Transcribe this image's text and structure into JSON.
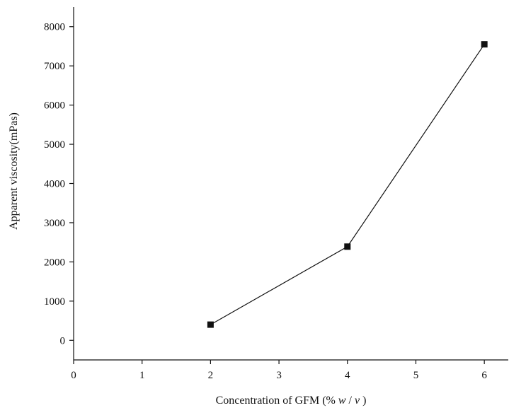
{
  "chart_data": {
    "type": "line",
    "x": [
      2,
      4,
      6
    ],
    "series": [
      {
        "values": [
          400,
          2390,
          7550
        ],
        "color": "#111111",
        "marker": "square"
      }
    ],
    "xlabel": "Concentration of GFM (%",
    "xlabel_italic_1": "w",
    "xlabel_slash": "/",
    "xlabel_italic_2": "v",
    "xlabel_close": ")",
    "ylabel": "Apparent viscosity(mPas)",
    "xlim": [
      0,
      6.35
    ],
    "ylim": [
      -500,
      8500
    ],
    "xticks": [
      0,
      1,
      2,
      3,
      4,
      5,
      6
    ],
    "yticks": [
      0,
      1000,
      2000,
      3000,
      4000,
      5000,
      6000,
      7000,
      8000
    ],
    "grid": false,
    "legend": "none"
  }
}
